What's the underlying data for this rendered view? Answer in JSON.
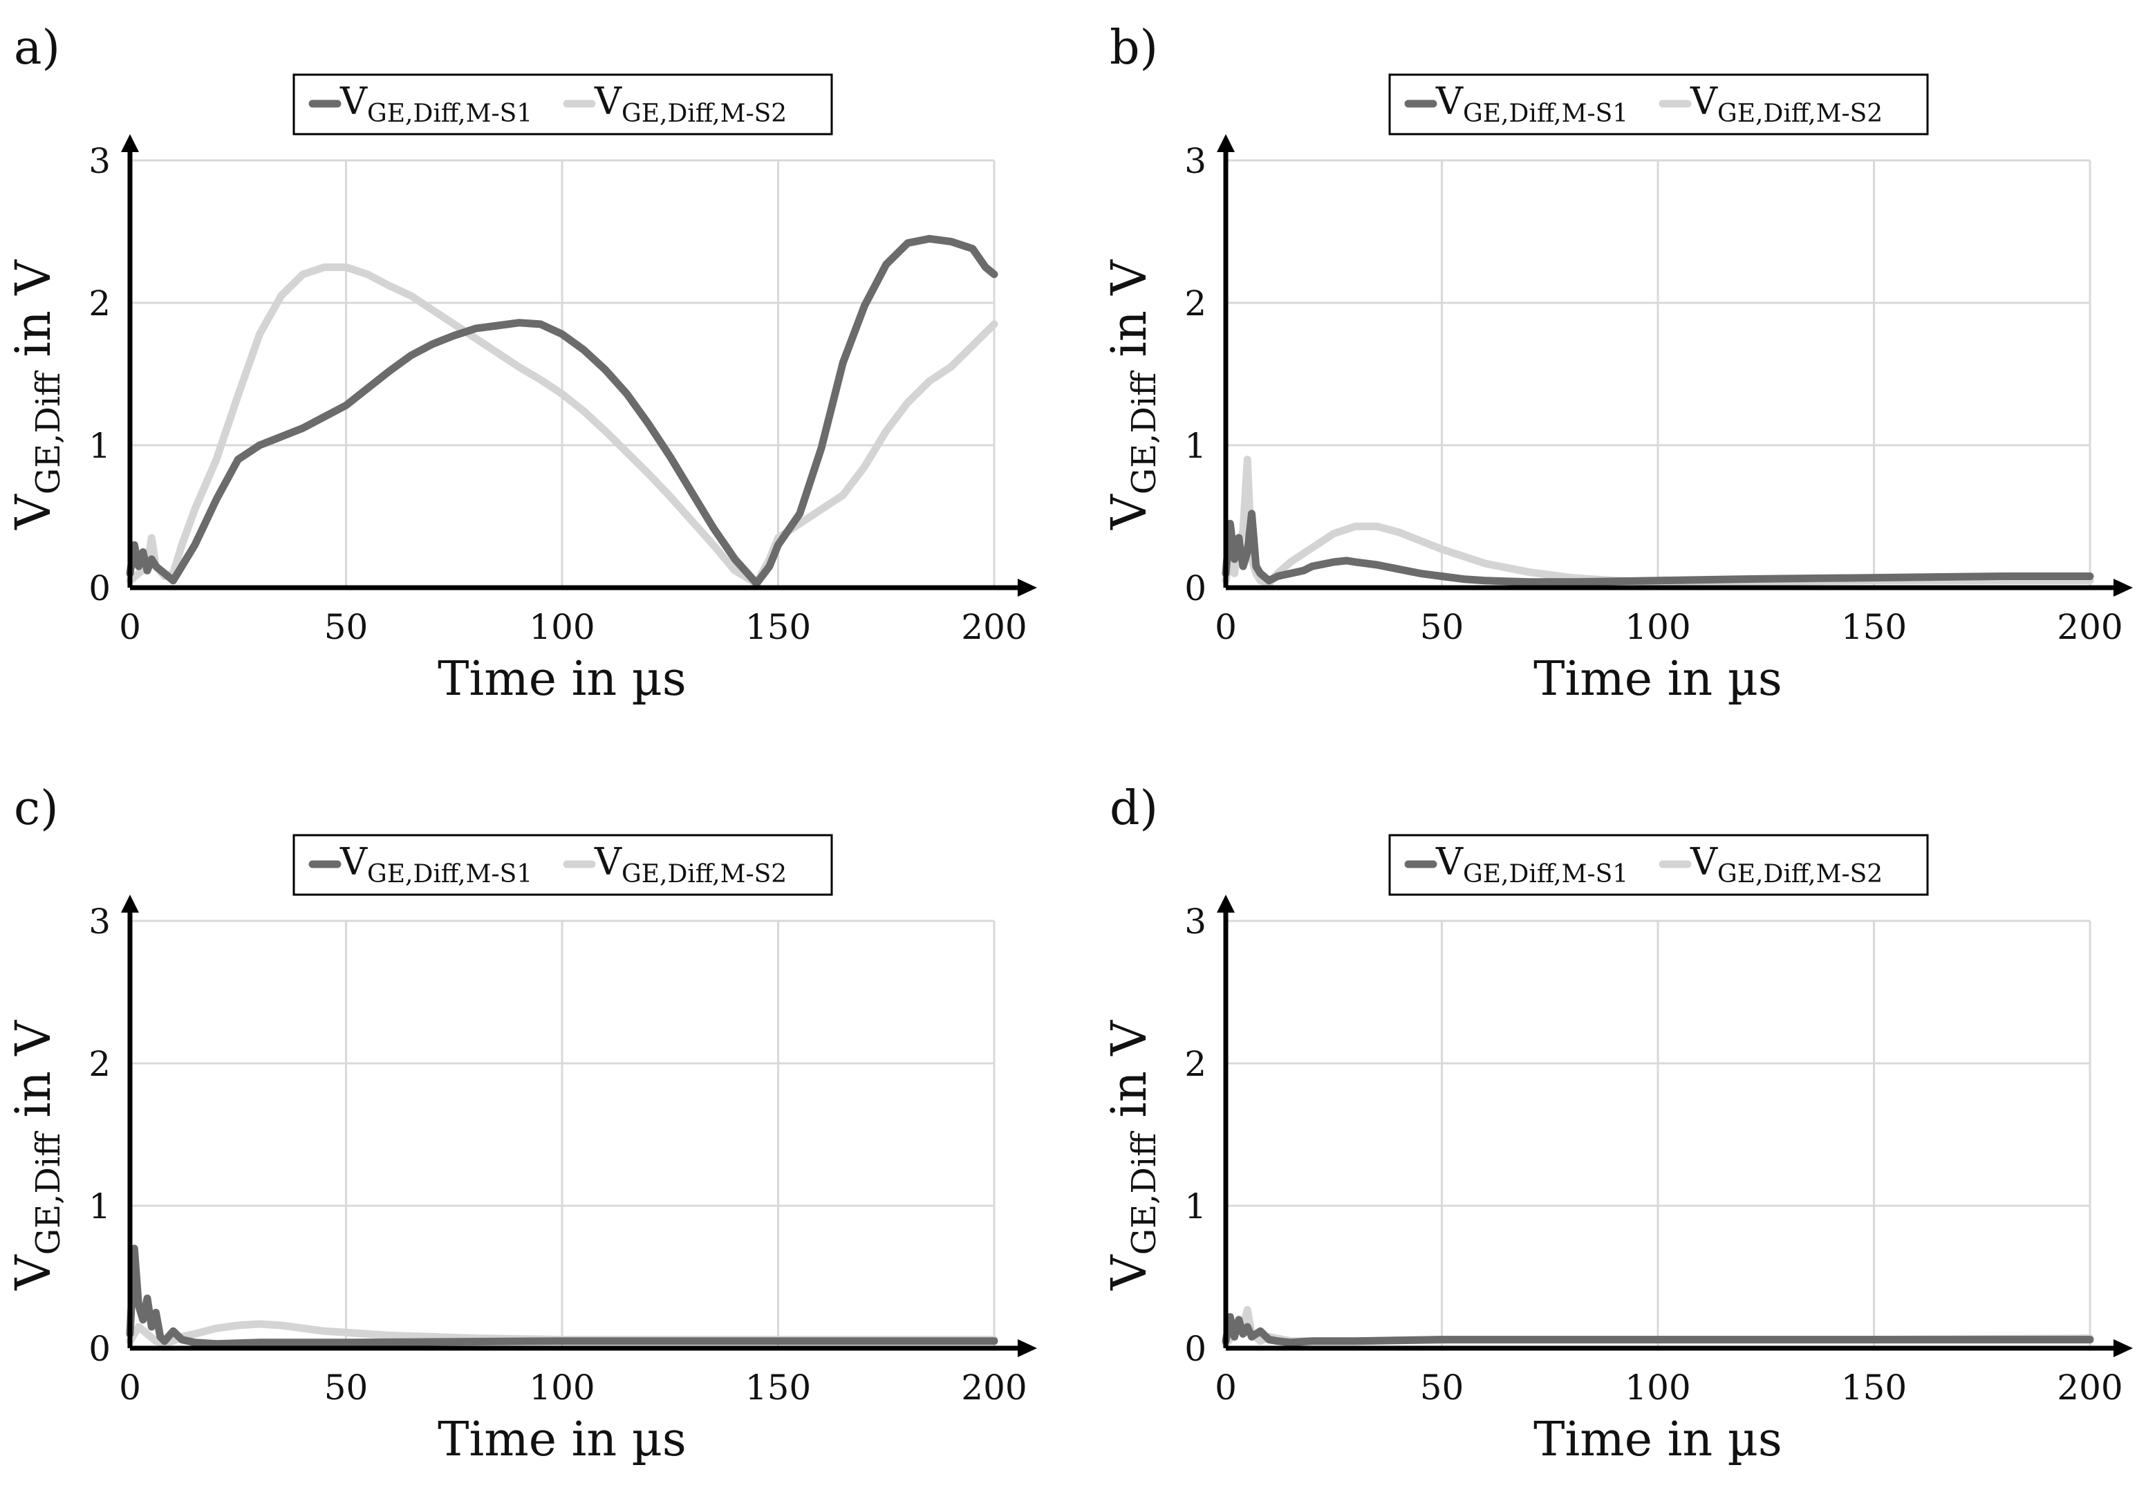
{
  "colors": {
    "s1": "#6b6b6b",
    "s2": "#d4d4d4",
    "grid": "#d9d9d9",
    "axis": "#000000"
  },
  "legend": {
    "s1": {
      "main": "V",
      "sub": "GE,Diff,M-S1"
    },
    "s2": {
      "main": "V",
      "sub": "GE,Diff,M-S2"
    }
  },
  "chart_data": [
    {
      "panel": "a)",
      "type": "line",
      "xlabel": "Time in µs",
      "ylabel": {
        "main": "V",
        "sub": "GE,Diff",
        "rest": " in V"
      },
      "xlim": [
        0,
        200
      ],
      "ylim": [
        0,
        3
      ],
      "xticks": [
        "0",
        "50",
        "100",
        "150",
        "200"
      ],
      "yticks": [
        "0",
        "1",
        "2",
        "3"
      ],
      "grid": true,
      "series": [
        {
          "name": "VGE,Diff,M-S1",
          "x": [
            0,
            1,
            2,
            3,
            4,
            5,
            6,
            8,
            10,
            12,
            15,
            20,
            25,
            30,
            35,
            40,
            45,
            50,
            55,
            60,
            65,
            70,
            75,
            80,
            85,
            90,
            95,
            100,
            105,
            110,
            115,
            120,
            125,
            130,
            135,
            140,
            145,
            148,
            150,
            155,
            160,
            165,
            170,
            175,
            180,
            185,
            190,
            195,
            198,
            200
          ],
          "y": [
            0.1,
            0.3,
            0.15,
            0.25,
            0.12,
            0.2,
            0.15,
            0.1,
            0.05,
            0.15,
            0.3,
            0.62,
            0.9,
            1.0,
            1.06,
            1.12,
            1.2,
            1.28,
            1.4,
            1.52,
            1.63,
            1.71,
            1.77,
            1.82,
            1.84,
            1.86,
            1.85,
            1.78,
            1.67,
            1.53,
            1.36,
            1.15,
            0.92,
            0.67,
            0.42,
            0.2,
            0.03,
            0.15,
            0.3,
            0.52,
            0.98,
            1.58,
            1.98,
            2.27,
            2.42,
            2.45,
            2.43,
            2.38,
            2.25,
            2.2
          ]
        },
        {
          "name": "VGE,Diff,M-S2",
          "x": [
            0,
            2,
            4,
            5,
            6,
            8,
            10,
            12,
            15,
            20,
            25,
            30,
            35,
            40,
            45,
            50,
            55,
            60,
            65,
            70,
            75,
            80,
            85,
            90,
            95,
            100,
            105,
            110,
            115,
            120,
            125,
            130,
            135,
            140,
            145,
            148,
            150,
            155,
            160,
            165,
            170,
            175,
            180,
            185,
            190,
            195,
            200
          ],
          "y": [
            0.05,
            0.1,
            0.15,
            0.35,
            0.15,
            0.08,
            0.1,
            0.3,
            0.55,
            0.9,
            1.35,
            1.78,
            2.05,
            2.2,
            2.25,
            2.25,
            2.2,
            2.12,
            2.05,
            1.95,
            1.85,
            1.75,
            1.65,
            1.55,
            1.46,
            1.36,
            1.24,
            1.1,
            0.95,
            0.8,
            0.64,
            0.47,
            0.3,
            0.12,
            0.03,
            0.2,
            0.35,
            0.45,
            0.55,
            0.65,
            0.85,
            1.1,
            1.3,
            1.45,
            1.55,
            1.7,
            1.85
          ]
        }
      ]
    },
    {
      "panel": "b)",
      "type": "line",
      "xlabel": "Time in µs",
      "ylabel": {
        "main": "V",
        "sub": "GE,Diff",
        "rest": " in V"
      },
      "xlim": [
        0,
        200
      ],
      "ylim": [
        0,
        3
      ],
      "xticks": [
        "0",
        "50",
        "100",
        "150",
        "200"
      ],
      "yticks": [
        "0",
        "1",
        "2",
        "3"
      ],
      "grid": true,
      "series": [
        {
          "name": "VGE,Diff,M-S1",
          "x": [
            0,
            1,
            2,
            3,
            4,
            5,
            6,
            7,
            8,
            10,
            12,
            15,
            18,
            20,
            25,
            28,
            30,
            35,
            40,
            45,
            50,
            55,
            60,
            70,
            80,
            100,
            120,
            150,
            180,
            200
          ],
          "y": [
            0.1,
            0.45,
            0.2,
            0.35,
            0.15,
            0.25,
            0.52,
            0.15,
            0.1,
            0.05,
            0.08,
            0.1,
            0.12,
            0.15,
            0.18,
            0.19,
            0.18,
            0.16,
            0.13,
            0.1,
            0.08,
            0.06,
            0.05,
            0.04,
            0.04,
            0.05,
            0.06,
            0.07,
            0.08,
            0.08
          ]
        },
        {
          "name": "VGE,Diff,M-S2",
          "x": [
            0,
            1,
            2,
            3,
            4,
            5,
            6,
            7,
            8,
            10,
            12,
            15,
            20,
            25,
            30,
            35,
            40,
            45,
            50,
            55,
            60,
            70,
            80,
            90,
            100,
            120,
            150,
            180,
            200
          ],
          "y": [
            0.05,
            0.2,
            0.1,
            0.3,
            0.4,
            0.9,
            0.2,
            0.1,
            0.05,
            0.03,
            0.1,
            0.18,
            0.28,
            0.38,
            0.43,
            0.43,
            0.39,
            0.33,
            0.27,
            0.22,
            0.17,
            0.11,
            0.07,
            0.05,
            0.04,
            0.04,
            0.05,
            0.05,
            0.05
          ]
        }
      ]
    },
    {
      "panel": "c)",
      "type": "line",
      "xlabel": "Time in µs",
      "ylabel": {
        "main": "V",
        "sub": "GE,Diff",
        "rest": " in V"
      },
      "xlim": [
        0,
        200
      ],
      "ylim": [
        0,
        3
      ],
      "xticks": [
        "0",
        "50",
        "100",
        "150",
        "200"
      ],
      "yticks": [
        "0",
        "1",
        "2",
        "3"
      ],
      "grid": true,
      "series": [
        {
          "name": "VGE,Diff,M-S1",
          "x": [
            0,
            1,
            2,
            3,
            4,
            5,
            6,
            7,
            8,
            10,
            12,
            15,
            20,
            30,
            50,
            100,
            150,
            200
          ],
          "y": [
            0.1,
            0.7,
            0.3,
            0.2,
            0.35,
            0.15,
            0.25,
            0.08,
            0.05,
            0.12,
            0.06,
            0.04,
            0.03,
            0.04,
            0.04,
            0.05,
            0.05,
            0.05
          ]
        },
        {
          "name": "VGE,Diff,M-S2",
          "x": [
            0,
            2,
            4,
            6,
            8,
            10,
            12,
            15,
            20,
            25,
            30,
            35,
            40,
            45,
            50,
            60,
            70,
            80,
            100,
            150,
            200
          ],
          "y": [
            0.05,
            0.15,
            0.1,
            0.05,
            0.03,
            0.05,
            0.08,
            0.1,
            0.14,
            0.16,
            0.17,
            0.16,
            0.14,
            0.12,
            0.11,
            0.09,
            0.08,
            0.07,
            0.06,
            0.06,
            0.06
          ]
        }
      ]
    },
    {
      "panel": "d)",
      "type": "line",
      "xlabel": "Time in µs",
      "ylabel": {
        "main": "V",
        "sub": "GE,Diff",
        "rest": " in V"
      },
      "xlim": [
        0,
        200
      ],
      "ylim": [
        0,
        3
      ],
      "xticks": [
        "0",
        "50",
        "100",
        "150",
        "200"
      ],
      "yticks": [
        "0",
        "1",
        "2",
        "3"
      ],
      "grid": true,
      "series": [
        {
          "name": "VGE,Diff,M-S1",
          "x": [
            0,
            1,
            2,
            3,
            4,
            5,
            6,
            8,
            10,
            12,
            15,
            20,
            30,
            50,
            100,
            150,
            200
          ],
          "y": [
            0.05,
            0.22,
            0.08,
            0.2,
            0.1,
            0.15,
            0.08,
            0.12,
            0.06,
            0.05,
            0.04,
            0.05,
            0.05,
            0.06,
            0.06,
            0.06,
            0.06
          ]
        },
        {
          "name": "VGE,Diff,M-S2",
          "x": [
            0,
            2,
            4,
            5,
            6,
            8,
            10,
            15,
            20,
            30,
            50,
            100,
            150,
            200
          ],
          "y": [
            0.03,
            0.1,
            0.15,
            0.27,
            0.1,
            0.05,
            0.08,
            0.05,
            0.05,
            0.05,
            0.06,
            0.06,
            0.06,
            0.07
          ]
        }
      ]
    }
  ]
}
